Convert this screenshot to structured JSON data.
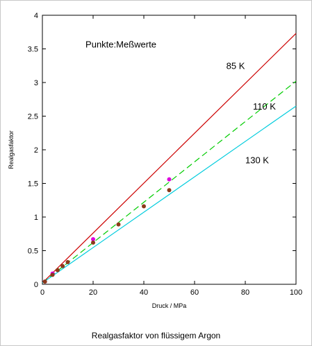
{
  "caption": "Realgasfaktor von flüssigem Argon",
  "chart_data": {
    "type": "line",
    "xlabel": "Druck / MPa",
    "ylabel": "Realgasfaktor",
    "xlim": [
      0,
      100
    ],
    "ylim": [
      0,
      4
    ],
    "x_ticks": [
      "0",
      "20",
      "40",
      "60",
      "80",
      "100"
    ],
    "y_ticks": [
      "0",
      "0.5",
      "1",
      "1.5",
      "2",
      "2.5",
      "3",
      "3.5",
      "4"
    ],
    "grid": false,
    "annotation": "Punkte:Meßwerte",
    "series": [
      {
        "name": "85 K",
        "color": "#cc0000",
        "style": "solid",
        "x": [
          0,
          100
        ],
        "y": [
          0.02,
          3.73
        ]
      },
      {
        "name": "110 K",
        "color": "#00cc00",
        "style": "dashed",
        "x": [
          0,
          100
        ],
        "y": [
          0.02,
          3.02
        ]
      },
      {
        "name": "130 K",
        "color": "#00ccdd",
        "style": "solid",
        "x": [
          0,
          100
        ],
        "y": [
          0.02,
          2.65
        ]
      }
    ],
    "measured_points": [
      {
        "color": "#dd00dd",
        "x": [
          1,
          4,
          20,
          50
        ],
        "y": [
          0.04,
          0.16,
          0.67,
          1.56
        ]
      },
      {
        "color": "#8b3a1a",
        "x": [
          1,
          4,
          6,
          8,
          10,
          20,
          30,
          40,
          50
        ],
        "y": [
          0.04,
          0.14,
          0.21,
          0.27,
          0.33,
          0.62,
          0.89,
          1.16,
          1.4
        ]
      }
    ],
    "series_labels": [
      {
        "text": "85 K",
        "x": 72.5,
        "y": 3.2
      },
      {
        "text": "110 K",
        "x": 83,
        "y": 2.6
      },
      {
        "text": "130 K",
        "x": 80,
        "y": 1.8
      }
    ]
  }
}
